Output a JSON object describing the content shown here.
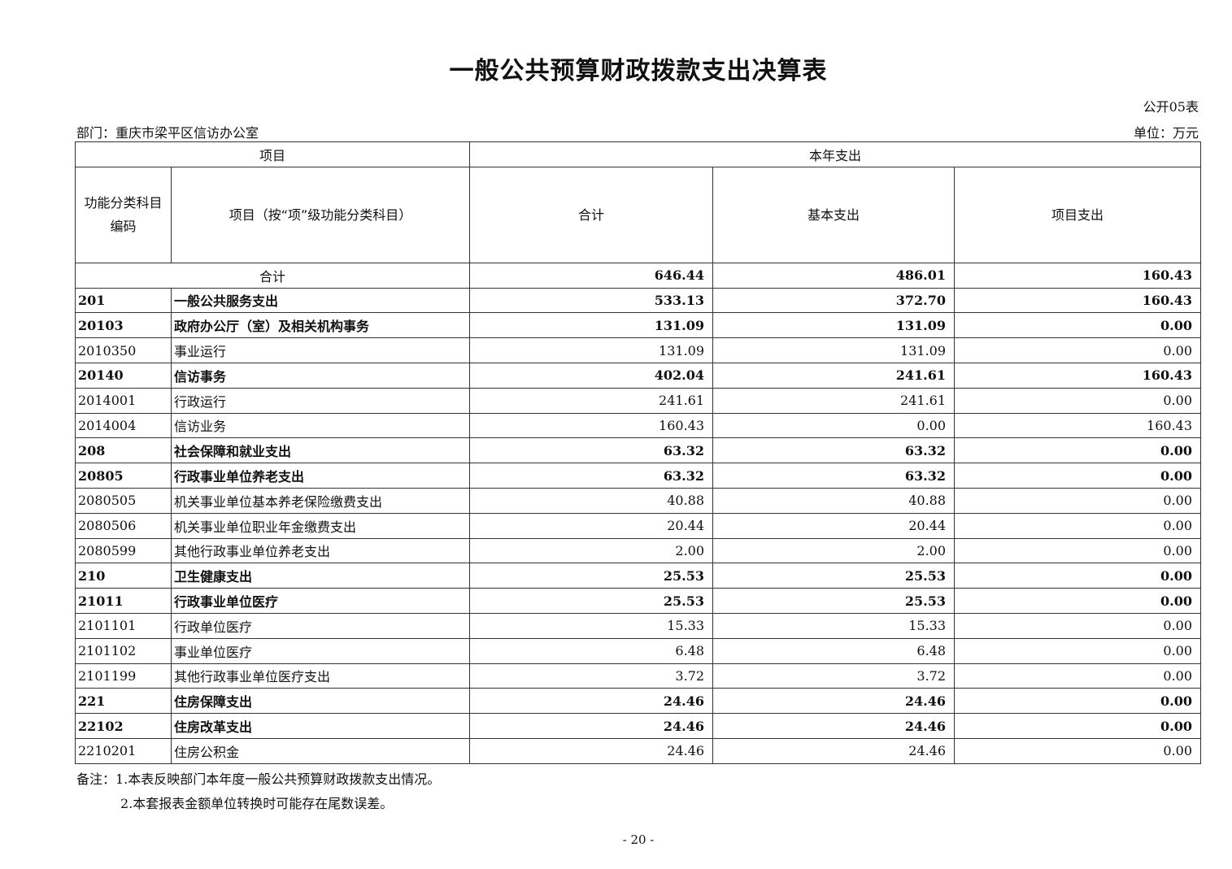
{
  "title": "一般公共预算财政拨款支出决算表",
  "table_no": "公开05表",
  "department": "部门：重庆市梁平区信访办公室",
  "unit": "单位：万元",
  "headers": {
    "item": "项目",
    "this_year": "本年支出",
    "code": "功能分类科目编码",
    "name": "项目（按“项”级功能分类科目）",
    "total": "合计",
    "basic": "基本支出",
    "project": "项目支出"
  },
  "total_row": {
    "label": "合计",
    "total": "646.44",
    "basic": "486.01",
    "project": "160.43"
  },
  "rows": [
    {
      "code": "201",
      "name": "一般公共服务支出",
      "total": "533.13",
      "basic": "372.70",
      "project": "160.43",
      "bold": true
    },
    {
      "code": "20103",
      "name": "政府办公厅（室）及相关机构事务",
      "total": "131.09",
      "basic": "131.09",
      "project": "0.00",
      "bold": true
    },
    {
      "code": "2010350",
      "name": "事业运行",
      "total": "131.09",
      "basic": "131.09",
      "project": "0.00",
      "bold": false
    },
    {
      "code": "20140",
      "name": "信访事务",
      "total": "402.04",
      "basic": "241.61",
      "project": "160.43",
      "bold": true
    },
    {
      "code": "2014001",
      "name": "行政运行",
      "total": "241.61",
      "basic": "241.61",
      "project": "0.00",
      "bold": false
    },
    {
      "code": "2014004",
      "name": "信访业务",
      "total": "160.43",
      "basic": "0.00",
      "project": "160.43",
      "bold": false
    },
    {
      "code": "208",
      "name": "社会保障和就业支出",
      "total": "63.32",
      "basic": "63.32",
      "project": "0.00",
      "bold": true
    },
    {
      "code": "20805",
      "name": "行政事业单位养老支出",
      "total": "63.32",
      "basic": "63.32",
      "project": "0.00",
      "bold": true
    },
    {
      "code": "2080505",
      "name": "机关事业单位基本养老保险缴费支出",
      "total": "40.88",
      "basic": "40.88",
      "project": "0.00",
      "bold": false
    },
    {
      "code": "2080506",
      "name": "机关事业单位职业年金缴费支出",
      "total": "20.44",
      "basic": "20.44",
      "project": "0.00",
      "bold": false
    },
    {
      "code": "2080599",
      "name": "其他行政事业单位养老支出",
      "total": "2.00",
      "basic": "2.00",
      "project": "0.00",
      "bold": false
    },
    {
      "code": "210",
      "name": "卫生健康支出",
      "total": "25.53",
      "basic": "25.53",
      "project": "0.00",
      "bold": true
    },
    {
      "code": "21011",
      "name": "行政事业单位医疗",
      "total": "25.53",
      "basic": "25.53",
      "project": "0.00",
      "bold": true
    },
    {
      "code": "2101101",
      "name": "行政单位医疗",
      "total": "15.33",
      "basic": "15.33",
      "project": "0.00",
      "bold": false
    },
    {
      "code": "2101102",
      "name": "事业单位医疗",
      "total": "6.48",
      "basic": "6.48",
      "project": "0.00",
      "bold": false
    },
    {
      "code": "2101199",
      "name": "其他行政事业单位医疗支出",
      "total": "3.72",
      "basic": "3.72",
      "project": "0.00",
      "bold": false
    },
    {
      "code": "221",
      "name": "住房保障支出",
      "total": "24.46",
      "basic": "24.46",
      "project": "0.00",
      "bold": true
    },
    {
      "code": "22102",
      "name": "住房改革支出",
      "total": "24.46",
      "basic": "24.46",
      "project": "0.00",
      "bold": true
    },
    {
      "code": "2210201",
      "name": "住房公积金",
      "total": "24.46",
      "basic": "24.46",
      "project": "0.00",
      "bold": false
    }
  ],
  "notes": [
    "备注：1.本表反映部门本年度一般公共预算财政拨款支出情况。",
    "2.本套报表金额单位转换时可能存在尾数误差。"
  ],
  "page_number": "- 20 -"
}
